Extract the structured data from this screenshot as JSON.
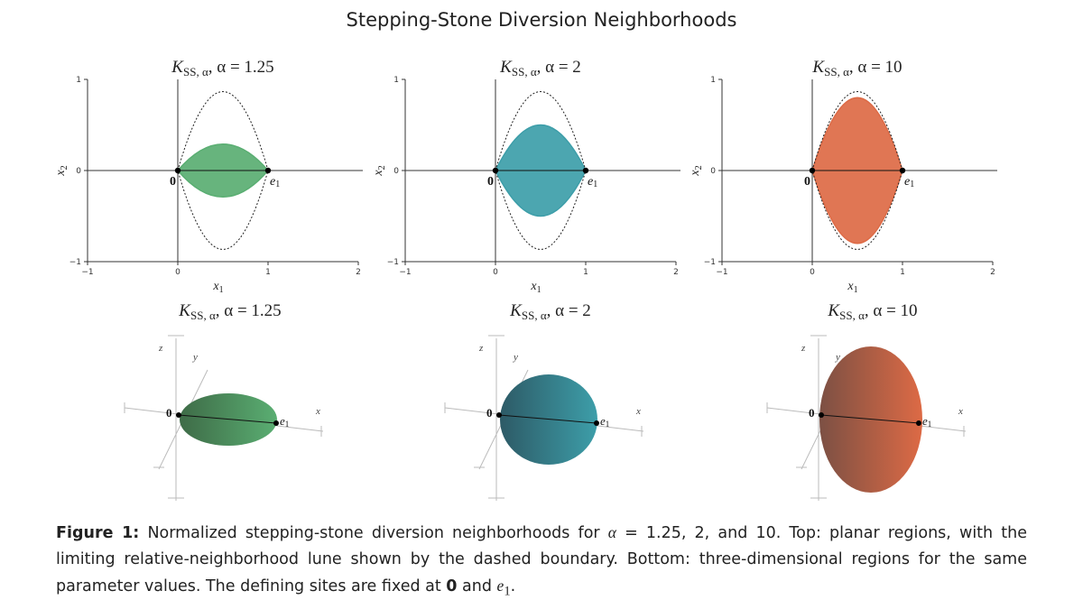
{
  "title": "Stepping-Stone Diversion Neighborhoods",
  "colors": {
    "green": "#5aae72",
    "teal": "#3d9ea9",
    "orange": "#dd6a45",
    "greenDark": "#3e6b47",
    "tealDark": "#2d5a66",
    "orangeDark": "#7c5044"
  },
  "chart_data": [
    {
      "type": "area",
      "alpha": 1.25,
      "panel_title": [
        "K",
        "SS, α",
        ", α = 1.25"
      ],
      "xlabel": "x1",
      "ylabel": "x2",
      "xlim": [
        -1,
        2
      ],
      "ylim": [
        -1,
        1
      ],
      "xticks": [
        "−1",
        "0",
        "1",
        "2"
      ],
      "yticks": [
        "−1",
        "0",
        "1"
      ],
      "region_half_height": 0.29,
      "lune_half_height": 0.866,
      "points": [
        "0",
        "e1"
      ],
      "color": "green"
    },
    {
      "type": "area",
      "alpha": 2,
      "panel_title": [
        "K",
        "SS, α",
        ", α = 2"
      ],
      "xlabel": "x1",
      "ylabel": "x2",
      "xlim": [
        -1,
        2
      ],
      "ylim": [
        -1,
        1
      ],
      "xticks": [
        "−1",
        "0",
        "1",
        "2"
      ],
      "yticks": [
        "−1",
        "0",
        "1"
      ],
      "region_half_height": 0.5,
      "lune_half_height": 0.866,
      "points": [
        "0",
        "e1"
      ],
      "color": "teal"
    },
    {
      "type": "area",
      "alpha": 10,
      "panel_title": [
        "K",
        "SS, α",
        ", α = 10"
      ],
      "xlabel": "x1",
      "ylabel": "x2",
      "xlim": [
        -1,
        2
      ],
      "ylim": [
        -1,
        1
      ],
      "xticks": [
        "−1",
        "0",
        "1",
        "2"
      ],
      "yticks": [
        "−1",
        "0",
        "1"
      ],
      "region_half_height": 0.8,
      "lune_half_height": 0.866,
      "points": [
        "0",
        "e1"
      ],
      "color": "orange"
    },
    {
      "type": "3d-region",
      "alpha": 1.25,
      "panel_title": [
        "K",
        "SS, α",
        ", α = 1.25"
      ],
      "axis_labels": [
        "x",
        "y",
        "z"
      ],
      "points": [
        "0",
        "e1"
      ],
      "color": "green"
    },
    {
      "type": "3d-region",
      "alpha": 2,
      "panel_title": [
        "K",
        "SS, α",
        ", α = 2"
      ],
      "axis_labels": [
        "x",
        "y",
        "z"
      ],
      "points": [
        "0",
        "e1"
      ],
      "color": "teal"
    },
    {
      "type": "3d-region",
      "alpha": 10,
      "panel_title": [
        "K",
        "SS, α",
        ", α = 10"
      ],
      "axis_labels": [
        "x",
        "y",
        "z"
      ],
      "points": [
        "0",
        "e1"
      ],
      "color": "orange"
    }
  ],
  "caption": {
    "label": "Figure 1:",
    "text1": " Normalized stepping-stone diversion neighborhoods for ",
    "alpha": "α",
    "text2": " = 1.25, 2, and 10. Top: planar regions, with the limiting relative-neighborhood lune shown by the dashed boundary. Bottom: three-dimensional regions for the same parameter values. The defining sites are fixed at ",
    "zero": "0",
    "text3": " and ",
    "e": "e",
    "sub": "1",
    "text4": "."
  }
}
